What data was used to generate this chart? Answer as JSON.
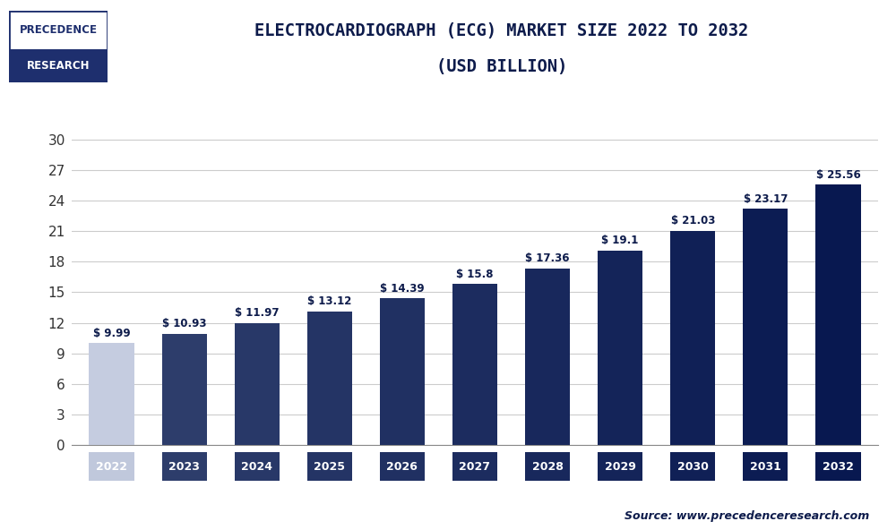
{
  "years": [
    "2022",
    "2023",
    "2024",
    "2025",
    "2026",
    "2027",
    "2028",
    "2029",
    "2030",
    "2031",
    "2032"
  ],
  "values": [
    9.99,
    10.93,
    11.97,
    13.12,
    14.39,
    15.8,
    17.36,
    19.1,
    21.03,
    23.17,
    25.56
  ],
  "bar_colors": [
    "#c5cce0",
    "#2d3d6b",
    "#283868",
    "#243465",
    "#203062",
    "#1c2c5f",
    "#18285c",
    "#142459",
    "#102056",
    "#0c1c53",
    "#081850"
  ],
  "bar_color_2022": "#c0c8dc",
  "x_label_color_2022": "#8090b8",
  "x_label_color_rest": "#1e2f5e",
  "title_line1": "ELECTROCARDIOGRAPH (ECG) MARKET SIZE 2022 TO 2032",
  "title_line2": "(USD BILLION)",
  "yticks": [
    0,
    3,
    6,
    9,
    12,
    15,
    18,
    21,
    24,
    27,
    30
  ],
  "ylim": [
    0,
    33
  ],
  "background_color": "#ffffff",
  "grid_color": "#cccccc",
  "title_color": "#0d1b4b",
  "separator_color": "#1e2f6e",
  "source_text": "Source: www.precedenceresearch.com",
  "logo_text_line1": "PRECEDENCE",
  "logo_text_line2": "RESEARCH",
  "logo_box_color": "#1e2f6e",
  "logo_text_color1": "#1e2f6e",
  "logo_text_color2": "#ffffff"
}
